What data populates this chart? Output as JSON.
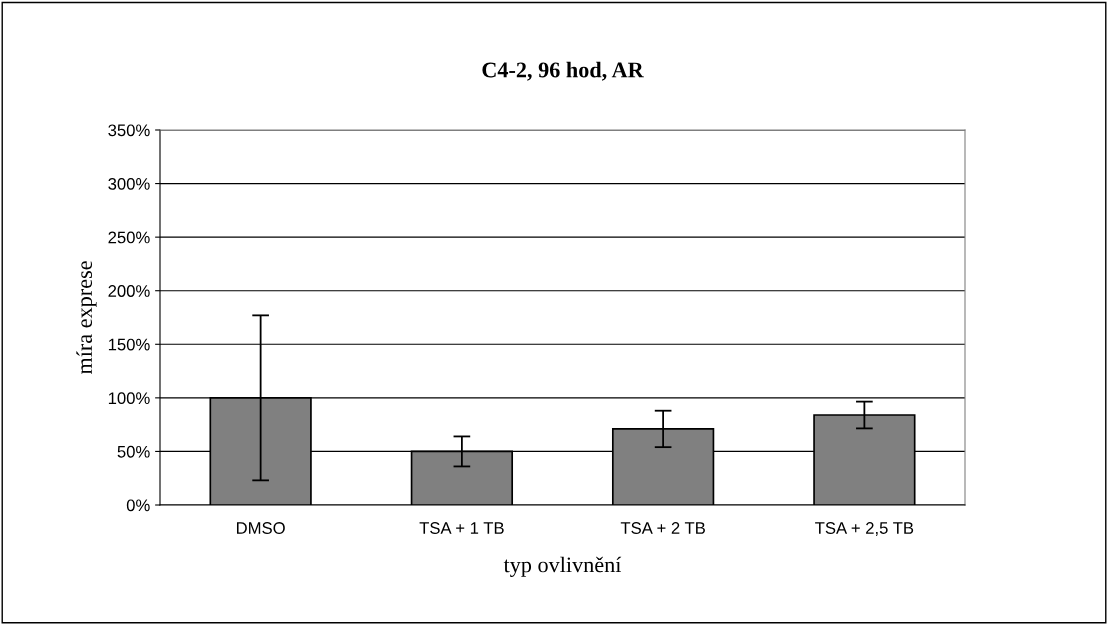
{
  "chart_data": {
    "type": "bar",
    "title": "C4-2, 96 hod, AR",
    "xlabel": "typ ovlivnění",
    "ylabel": "míra exprese",
    "categories": [
      "DMSO",
      "TSA + 1 TB",
      "TSA + 2 TB",
      "TSA + 2,5 TB"
    ],
    "values": [
      100,
      50,
      71,
      84
    ],
    "errors": [
      77,
      14,
      17,
      12.5
    ],
    "color": "#808080",
    "ylim": [
      0,
      350
    ],
    "yticks": [
      {
        "value": 0,
        "label": "0%"
      },
      {
        "value": 50,
        "label": "50%"
      },
      {
        "value": 100,
        "label": "100%"
      },
      {
        "value": 150,
        "label": "150%"
      },
      {
        "value": 200,
        "label": "200%"
      },
      {
        "value": 250,
        "label": "250%"
      },
      {
        "value": 300,
        "label": "300%"
      },
      {
        "value": 350,
        "label": "350%"
      }
    ],
    "grid": "y",
    "legend": false
  }
}
